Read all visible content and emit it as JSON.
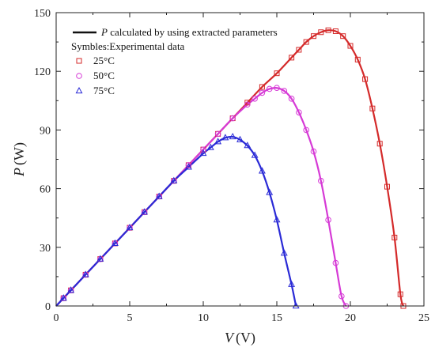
{
  "chart_data": {
    "type": "line",
    "xlabel_var": "V",
    "xlabel_unit": "(V)",
    "ylabel_var": "P",
    "ylabel_unit": "(W)",
    "xlim": [
      0,
      25
    ],
    "ylim": [
      0,
      150
    ],
    "x_ticks": [
      "0",
      "5",
      "10",
      "15",
      "20",
      "25"
    ],
    "y_ticks": [
      "0",
      "30",
      "60",
      "90",
      "120",
      "150"
    ],
    "legend": {
      "line_var": "P",
      "line_label": " calculated by using extracted parameters",
      "symbols_label": "Symbles:Experimental data"
    },
    "series": [
      {
        "name": "25°C",
        "color": "#d42a2a",
        "marker": "square",
        "x": [
          0,
          0.5,
          1,
          2,
          3,
          4,
          5,
          6,
          7,
          8,
          9,
          10,
          11,
          12,
          13,
          14,
          15,
          16,
          16.5,
          17,
          17.5,
          18,
          18.5,
          19,
          19.5,
          20,
          20.5,
          21,
          21.5,
          22,
          22.5,
          23,
          23.4,
          23.6
        ],
        "y": [
          0,
          4,
          8,
          16,
          24,
          32,
          40,
          48,
          56,
          64,
          72,
          80,
          88,
          96,
          104,
          112,
          119,
          127,
          131,
          135,
          138,
          140,
          141,
          140.5,
          138,
          133,
          126,
          116,
          101,
          83,
          61,
          35,
          6,
          0
        ]
      },
      {
        "name": "50°C",
        "color": "#d63ad6",
        "marker": "circle",
        "x": [
          0,
          0.5,
          1,
          2,
          3,
          4,
          5,
          6,
          7,
          8,
          9,
          10,
          11,
          12,
          13,
          13.5,
          14,
          14.5,
          15,
          15.5,
          16,
          16.5,
          17,
          17.5,
          18,
          18.5,
          19,
          19.4,
          19.7
        ],
        "y": [
          0,
          4,
          8,
          16,
          24,
          32,
          40,
          48,
          56,
          64,
          72,
          80,
          88,
          96,
          103,
          106,
          109,
          111,
          111.5,
          110,
          106,
          99,
          90,
          79,
          64,
          44,
          22,
          5,
          0
        ]
      },
      {
        "name": "75°C",
        "color": "#2a2ad6",
        "marker": "triangle",
        "x": [
          0,
          0.5,
          1,
          2,
          3,
          4,
          5,
          6,
          7,
          8,
          9,
          10,
          10.5,
          11,
          11.5,
          12,
          12.5,
          13,
          13.5,
          14,
          14.5,
          15,
          15.5,
          16,
          16.3
        ],
        "y": [
          0,
          4,
          8,
          16,
          24,
          32,
          40,
          48,
          56,
          64,
          71,
          78,
          81,
          84,
          86,
          86.5,
          85,
          82,
          77,
          69,
          58,
          44,
          27,
          11,
          0
        ]
      }
    ]
  }
}
